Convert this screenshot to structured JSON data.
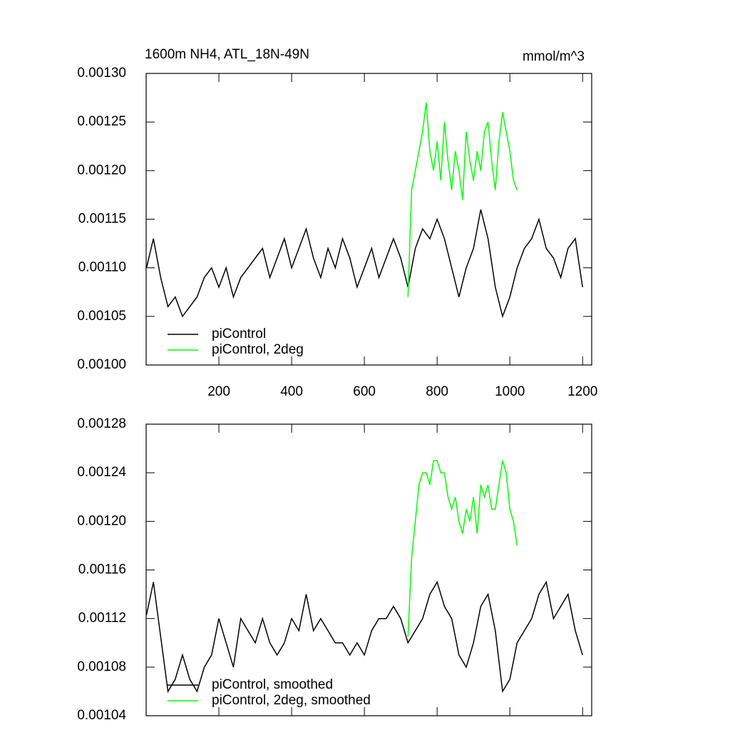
{
  "chart_data": [
    {
      "type": "line",
      "title": "1600m NH4, ATL_18N-49N",
      "units": "mmol/m^3",
      "xlim": [
        0,
        1225
      ],
      "xticks": [
        200,
        400,
        600,
        800,
        1000,
        1200
      ],
      "ylim": [
        0.001,
        0.0013
      ],
      "yticks": [
        {
          "value": 0.001,
          "label": "0.00100"
        },
        {
          "value": 0.00105,
          "label": "0.00105"
        },
        {
          "value": 0.0011,
          "label": "0.00110"
        },
        {
          "value": 0.00115,
          "label": "0.00115"
        },
        {
          "value": 0.0012,
          "label": "0.00120"
        },
        {
          "value": 0.00125,
          "label": "0.00125"
        },
        {
          "value": 0.0013,
          "label": "0.00130"
        }
      ],
      "legend": "lower left",
      "series": [
        {
          "name": "piControl",
          "color": "#000000",
          "x": [
            1,
            20,
            40,
            60,
            80,
            100,
            120,
            140,
            160,
            180,
            200,
            220,
            240,
            260,
            280,
            300,
            320,
            340,
            360,
            380,
            400,
            420,
            440,
            460,
            480,
            500,
            520,
            540,
            560,
            580,
            600,
            620,
            640,
            660,
            680,
            700,
            720,
            740,
            760,
            780,
            800,
            820,
            840,
            860,
            880,
            900,
            920,
            940,
            960,
            980,
            1000,
            1020,
            1040,
            1060,
            1080,
            1100,
            1120,
            1140,
            1160,
            1180,
            1200
          ],
          "values": [
            0.0011,
            0.00113,
            0.00109,
            0.00106,
            0.00107,
            0.00105,
            0.00106,
            0.00107,
            0.00109,
            0.0011,
            0.00108,
            0.0011,
            0.00107,
            0.00109,
            0.0011,
            0.00111,
            0.00112,
            0.00109,
            0.00111,
            0.00113,
            0.0011,
            0.00112,
            0.00114,
            0.00111,
            0.00109,
            0.00112,
            0.0011,
            0.00113,
            0.00111,
            0.00108,
            0.0011,
            0.00112,
            0.00109,
            0.00111,
            0.00113,
            0.00111,
            0.00108,
            0.00112,
            0.00114,
            0.00113,
            0.00115,
            0.00113,
            0.0011,
            0.00107,
            0.0011,
            0.00112,
            0.00116,
            0.00113,
            0.00108,
            0.00105,
            0.00107,
            0.0011,
            0.00112,
            0.00113,
            0.00115,
            0.00112,
            0.00111,
            0.00109,
            0.00112,
            0.00113,
            0.00108
          ]
        },
        {
          "name": "piControl, 2deg",
          "color": "#00ff00",
          "x": [
            720,
            730,
            740,
            750,
            760,
            770,
            780,
            790,
            800,
            810,
            820,
            830,
            840,
            850,
            860,
            870,
            880,
            890,
            900,
            910,
            920,
            930,
            940,
            950,
            960,
            970,
            980,
            990,
            1000,
            1010,
            1020
          ],
          "values": [
            0.00107,
            0.00118,
            0.0012,
            0.00122,
            0.00124,
            0.00127,
            0.00122,
            0.0012,
            0.00123,
            0.00119,
            0.00125,
            0.00121,
            0.00118,
            0.00122,
            0.0012,
            0.00117,
            0.00124,
            0.00121,
            0.00119,
            0.00122,
            0.0012,
            0.00124,
            0.00125,
            0.00121,
            0.00118,
            0.00123,
            0.00126,
            0.00124,
            0.00122,
            0.00119,
            0.00118
          ]
        }
      ]
    },
    {
      "type": "line",
      "xlim": [
        0,
        1225
      ],
      "xticks": [
        200,
        400,
        600,
        800,
        1000,
        1200
      ],
      "ylim": [
        0.00104,
        0.00128
      ],
      "yticks": [
        {
          "value": 0.00104,
          "label": "0.00104"
        },
        {
          "value": 0.00108,
          "label": "0.00108"
        },
        {
          "value": 0.00112,
          "label": "0.00112"
        },
        {
          "value": 0.00116,
          "label": "0.00116"
        },
        {
          "value": 0.0012,
          "label": "0.00120"
        },
        {
          "value": 0.00124,
          "label": "0.00124"
        },
        {
          "value": 0.00128,
          "label": "0.00128"
        }
      ],
      "legend": "lower left",
      "series": [
        {
          "name": "piControl, smoothed",
          "color": "#000000",
          "x": [
            1,
            20,
            40,
            60,
            80,
            100,
            120,
            140,
            160,
            180,
            200,
            220,
            240,
            260,
            280,
            300,
            320,
            340,
            360,
            380,
            400,
            420,
            440,
            460,
            480,
            500,
            520,
            540,
            560,
            580,
            600,
            620,
            640,
            660,
            680,
            700,
            720,
            740,
            760,
            780,
            800,
            820,
            840,
            860,
            880,
            900,
            920,
            940,
            960,
            980,
            1000,
            1020,
            1040,
            1060,
            1080,
            1100,
            1120,
            1140,
            1160,
            1180,
            1200
          ],
          "values": [
            0.001123,
            0.00115,
            0.001105,
            0.00106,
            0.00107,
            0.00109,
            0.00107,
            0.00106,
            0.00108,
            0.00109,
            0.00112,
            0.0011,
            0.00108,
            0.00112,
            0.00111,
            0.0011,
            0.00112,
            0.0011,
            0.00109,
            0.0011,
            0.00112,
            0.00111,
            0.00114,
            0.00111,
            0.00112,
            0.00111,
            0.0011,
            0.0011,
            0.00109,
            0.0011,
            0.00109,
            0.00111,
            0.00112,
            0.00112,
            0.00113,
            0.00112,
            0.0011,
            0.00111,
            0.00112,
            0.00114,
            0.00115,
            0.00113,
            0.00112,
            0.00109,
            0.00108,
            0.0011,
            0.00113,
            0.00114,
            0.00111,
            0.00106,
            0.00107,
            0.0011,
            0.00111,
            0.00112,
            0.00114,
            0.00115,
            0.00112,
            0.00113,
            0.00114,
            0.00111,
            0.00109
          ]
        },
        {
          "name": "piControl, 2deg, smoothed",
          "color": "#00ff00",
          "x": [
            720,
            730,
            740,
            750,
            760,
            770,
            780,
            790,
            800,
            810,
            820,
            830,
            840,
            850,
            860,
            870,
            880,
            890,
            900,
            910,
            920,
            930,
            940,
            950,
            960,
            970,
            980,
            990,
            1000,
            1010,
            1020
          ],
          "values": [
            0.001105,
            0.00117,
            0.0012,
            0.00123,
            0.00124,
            0.00124,
            0.00123,
            0.00125,
            0.00125,
            0.00124,
            0.00124,
            0.00122,
            0.00121,
            0.00122,
            0.0012,
            0.00119,
            0.00121,
            0.0012,
            0.00122,
            0.00119,
            0.00123,
            0.00122,
            0.00123,
            0.00121,
            0.00121,
            0.00123,
            0.00125,
            0.00124,
            0.00121,
            0.0012,
            0.00118
          ]
        }
      ]
    }
  ]
}
